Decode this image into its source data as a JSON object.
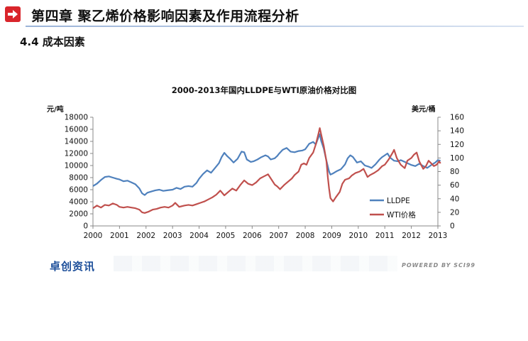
{
  "header": {
    "title": "第四章 聚乙烯价格影响因素及作用流程分析",
    "section": "4.4 成本因素"
  },
  "footer": {
    "logo": "卓创资讯",
    "powered_by": "POWERED BY SCI99"
  },
  "icons": {
    "header": "arrow-right-icon"
  },
  "colors": {
    "accent": "#d9252b",
    "lldpe": "#4f81bd",
    "wti": "#c0504d"
  },
  "chart_data": {
    "type": "line",
    "title": "2000-2013年国内LLDPE与WTI原油价格对比图",
    "ylabel_left": "元/吨",
    "ylabel_right": "美元/桶",
    "xlim": [
      2000,
      2013
    ],
    "ylim_left": [
      0,
      18000
    ],
    "ylim_right": [
      0,
      160
    ],
    "x_ticks": [
      "2000",
      "2001",
      "2002",
      "2003",
      "2004",
      "2005",
      "2006",
      "2007",
      "2008",
      "2009",
      "2010",
      "2011",
      "2012",
      "2013"
    ],
    "y_ticks_left": [
      "0",
      "2000",
      "4000",
      "6000",
      "8000",
      "10000",
      "12000",
      "14000",
      "16000",
      "18000"
    ],
    "y_ticks_right": [
      "0",
      "20",
      "40",
      "60",
      "80",
      "100",
      "120",
      "140",
      "160"
    ],
    "legend_position": "bottom-right",
    "grid": false,
    "series": [
      {
        "name": "LLDPE",
        "axis": "left",
        "color": "#4f81bd",
        "points": [
          [
            2000.0,
            6600
          ],
          [
            2000.15,
            7000
          ],
          [
            2000.3,
            7600
          ],
          [
            2000.45,
            8100
          ],
          [
            2000.6,
            8200
          ],
          [
            2000.75,
            8000
          ],
          [
            2000.9,
            7800
          ],
          [
            2001.0,
            7700
          ],
          [
            2001.15,
            7400
          ],
          [
            2001.3,
            7500
          ],
          [
            2001.45,
            7200
          ],
          [
            2001.6,
            6900
          ],
          [
            2001.75,
            6200
          ],
          [
            2001.85,
            5400
          ],
          [
            2001.95,
            5100
          ],
          [
            2002.05,
            5500
          ],
          [
            2002.2,
            5700
          ],
          [
            2002.35,
            5900
          ],
          [
            2002.5,
            6000
          ],
          [
            2002.65,
            5800
          ],
          [
            2002.8,
            5900
          ],
          [
            2003.0,
            6000
          ],
          [
            2003.15,
            6300
          ],
          [
            2003.3,
            6100
          ],
          [
            2003.45,
            6500
          ],
          [
            2003.6,
            6600
          ],
          [
            2003.75,
            6500
          ],
          [
            2003.9,
            7100
          ],
          [
            2004.0,
            7800
          ],
          [
            2004.15,
            8600
          ],
          [
            2004.3,
            9200
          ],
          [
            2004.45,
            8800
          ],
          [
            2004.6,
            9600
          ],
          [
            2004.75,
            10400
          ],
          [
            2004.85,
            11400
          ],
          [
            2004.95,
            12100
          ],
          [
            2005.05,
            11600
          ],
          [
            2005.15,
            11200
          ],
          [
            2005.3,
            10500
          ],
          [
            2005.45,
            11100
          ],
          [
            2005.6,
            12300
          ],
          [
            2005.7,
            12200
          ],
          [
            2005.8,
            11000
          ],
          [
            2005.95,
            10600
          ],
          [
            2006.05,
            10700
          ],
          [
            2006.2,
            11000
          ],
          [
            2006.35,
            11400
          ],
          [
            2006.5,
            11700
          ],
          [
            2006.6,
            11500
          ],
          [
            2006.7,
            11000
          ],
          [
            2006.85,
            11200
          ],
          [
            2006.95,
            11600
          ],
          [
            2007.0,
            11900
          ],
          [
            2007.15,
            12600
          ],
          [
            2007.3,
            12900
          ],
          [
            2007.45,
            12300
          ],
          [
            2007.6,
            12200
          ],
          [
            2007.75,
            12400
          ],
          [
            2007.9,
            12500
          ],
          [
            2008.0,
            12700
          ],
          [
            2008.15,
            13600
          ],
          [
            2008.3,
            13900
          ],
          [
            2008.4,
            13500
          ],
          [
            2008.5,
            14700
          ],
          [
            2008.55,
            15200
          ],
          [
            2008.6,
            14100
          ],
          [
            2008.7,
            12800
          ],
          [
            2008.8,
            10800
          ],
          [
            2008.9,
            9000
          ],
          [
            2008.95,
            8500
          ],
          [
            2009.05,
            8700
          ],
          [
            2009.2,
            9100
          ],
          [
            2009.35,
            9400
          ],
          [
            2009.5,
            10200
          ],
          [
            2009.6,
            11200
          ],
          [
            2009.7,
            11700
          ],
          [
            2009.8,
            11400
          ],
          [
            2009.95,
            10500
          ],
          [
            2010.1,
            10700
          ],
          [
            2010.25,
            10000
          ],
          [
            2010.4,
            9800
          ],
          [
            2010.5,
            9600
          ],
          [
            2010.65,
            10200
          ],
          [
            2010.8,
            11000
          ],
          [
            2010.9,
            11400
          ],
          [
            2011.0,
            11700
          ],
          [
            2011.1,
            12000
          ],
          [
            2011.2,
            11300
          ],
          [
            2011.35,
            10800
          ],
          [
            2011.5,
            10700
          ],
          [
            2011.6,
            10900
          ],
          [
            2011.75,
            10600
          ],
          [
            2011.85,
            10400
          ],
          [
            2012.0,
            10100
          ],
          [
            2012.15,
            9900
          ],
          [
            2012.3,
            10300
          ],
          [
            2012.45,
            9900
          ],
          [
            2012.6,
            9600
          ],
          [
            2012.75,
            10100
          ],
          [
            2012.9,
            10500
          ],
          [
            2013.0,
            10900
          ],
          [
            2013.1,
            10800
          ]
        ]
      },
      {
        "name": "WTI价格",
        "axis": "right",
        "color": "#c0504d",
        "points": [
          [
            2000.0,
            26
          ],
          [
            2000.15,
            30
          ],
          [
            2000.3,
            27
          ],
          [
            2000.45,
            31
          ],
          [
            2000.6,
            30
          ],
          [
            2000.75,
            33
          ],
          [
            2000.9,
            31
          ],
          [
            2001.0,
            28
          ],
          [
            2001.15,
            27
          ],
          [
            2001.3,
            28
          ],
          [
            2001.45,
            27
          ],
          [
            2001.6,
            26
          ],
          [
            2001.75,
            24
          ],
          [
            2001.85,
            20
          ],
          [
            2001.95,
            19
          ],
          [
            2002.1,
            21
          ],
          [
            2002.25,
            24
          ],
          [
            2002.4,
            25
          ],
          [
            2002.55,
            27
          ],
          [
            2002.7,
            28
          ],
          [
            2002.85,
            27
          ],
          [
            2003.0,
            30
          ],
          [
            2003.1,
            34
          ],
          [
            2003.25,
            28
          ],
          [
            2003.45,
            30
          ],
          [
            2003.6,
            31
          ],
          [
            2003.75,
            30
          ],
          [
            2003.9,
            32
          ],
          [
            2004.05,
            34
          ],
          [
            2004.2,
            36
          ],
          [
            2004.35,
            39
          ],
          [
            2004.5,
            42
          ],
          [
            2004.65,
            46
          ],
          [
            2004.8,
            52
          ],
          [
            2004.95,
            45
          ],
          [
            2005.1,
            50
          ],
          [
            2005.25,
            55
          ],
          [
            2005.4,
            52
          ],
          [
            2005.55,
            60
          ],
          [
            2005.7,
            67
          ],
          [
            2005.85,
            62
          ],
          [
            2006.0,
            60
          ],
          [
            2006.15,
            64
          ],
          [
            2006.3,
            70
          ],
          [
            2006.45,
            73
          ],
          [
            2006.6,
            76
          ],
          [
            2006.7,
            70
          ],
          [
            2006.85,
            61
          ],
          [
            2006.95,
            58
          ],
          [
            2007.05,
            54
          ],
          [
            2007.2,
            60
          ],
          [
            2007.35,
            65
          ],
          [
            2007.5,
            70
          ],
          [
            2007.6,
            75
          ],
          [
            2007.75,
            80
          ],
          [
            2007.85,
            90
          ],
          [
            2007.95,
            92
          ],
          [
            2008.05,
            90
          ],
          [
            2008.15,
            100
          ],
          [
            2008.3,
            108
          ],
          [
            2008.4,
            120
          ],
          [
            2008.5,
            136
          ],
          [
            2008.55,
            144
          ],
          [
            2008.6,
            135
          ],
          [
            2008.7,
            118
          ],
          [
            2008.8,
            95
          ],
          [
            2008.85,
            72
          ],
          [
            2008.9,
            55
          ],
          [
            2008.95,
            41
          ],
          [
            2009.05,
            36
          ],
          [
            2009.15,
            42
          ],
          [
            2009.3,
            50
          ],
          [
            2009.4,
            62
          ],
          [
            2009.5,
            68
          ],
          [
            2009.65,
            70
          ],
          [
            2009.75,
            74
          ],
          [
            2009.9,
            78
          ],
          [
            2010.05,
            80
          ],
          [
            2010.2,
            84
          ],
          [
            2010.35,
            72
          ],
          [
            2010.45,
            75
          ],
          [
            2010.6,
            78
          ],
          [
            2010.75,
            82
          ],
          [
            2010.9,
            88
          ],
          [
            2011.0,
            90
          ],
          [
            2011.15,
            98
          ],
          [
            2011.3,
            108
          ],
          [
            2011.35,
            112
          ],
          [
            2011.45,
            100
          ],
          [
            2011.6,
            90
          ],
          [
            2011.75,
            85
          ],
          [
            2011.85,
            96
          ],
          [
            2012.0,
            100
          ],
          [
            2012.1,
            105
          ],
          [
            2012.2,
            108
          ],
          [
            2012.3,
            95
          ],
          [
            2012.45,
            84
          ],
          [
            2012.55,
            88
          ],
          [
            2012.65,
            96
          ],
          [
            2012.75,
            92
          ],
          [
            2012.85,
            88
          ],
          [
            2012.95,
            90
          ],
          [
            2013.05,
            95
          ],
          [
            2013.1,
            92
          ]
        ]
      }
    ]
  }
}
